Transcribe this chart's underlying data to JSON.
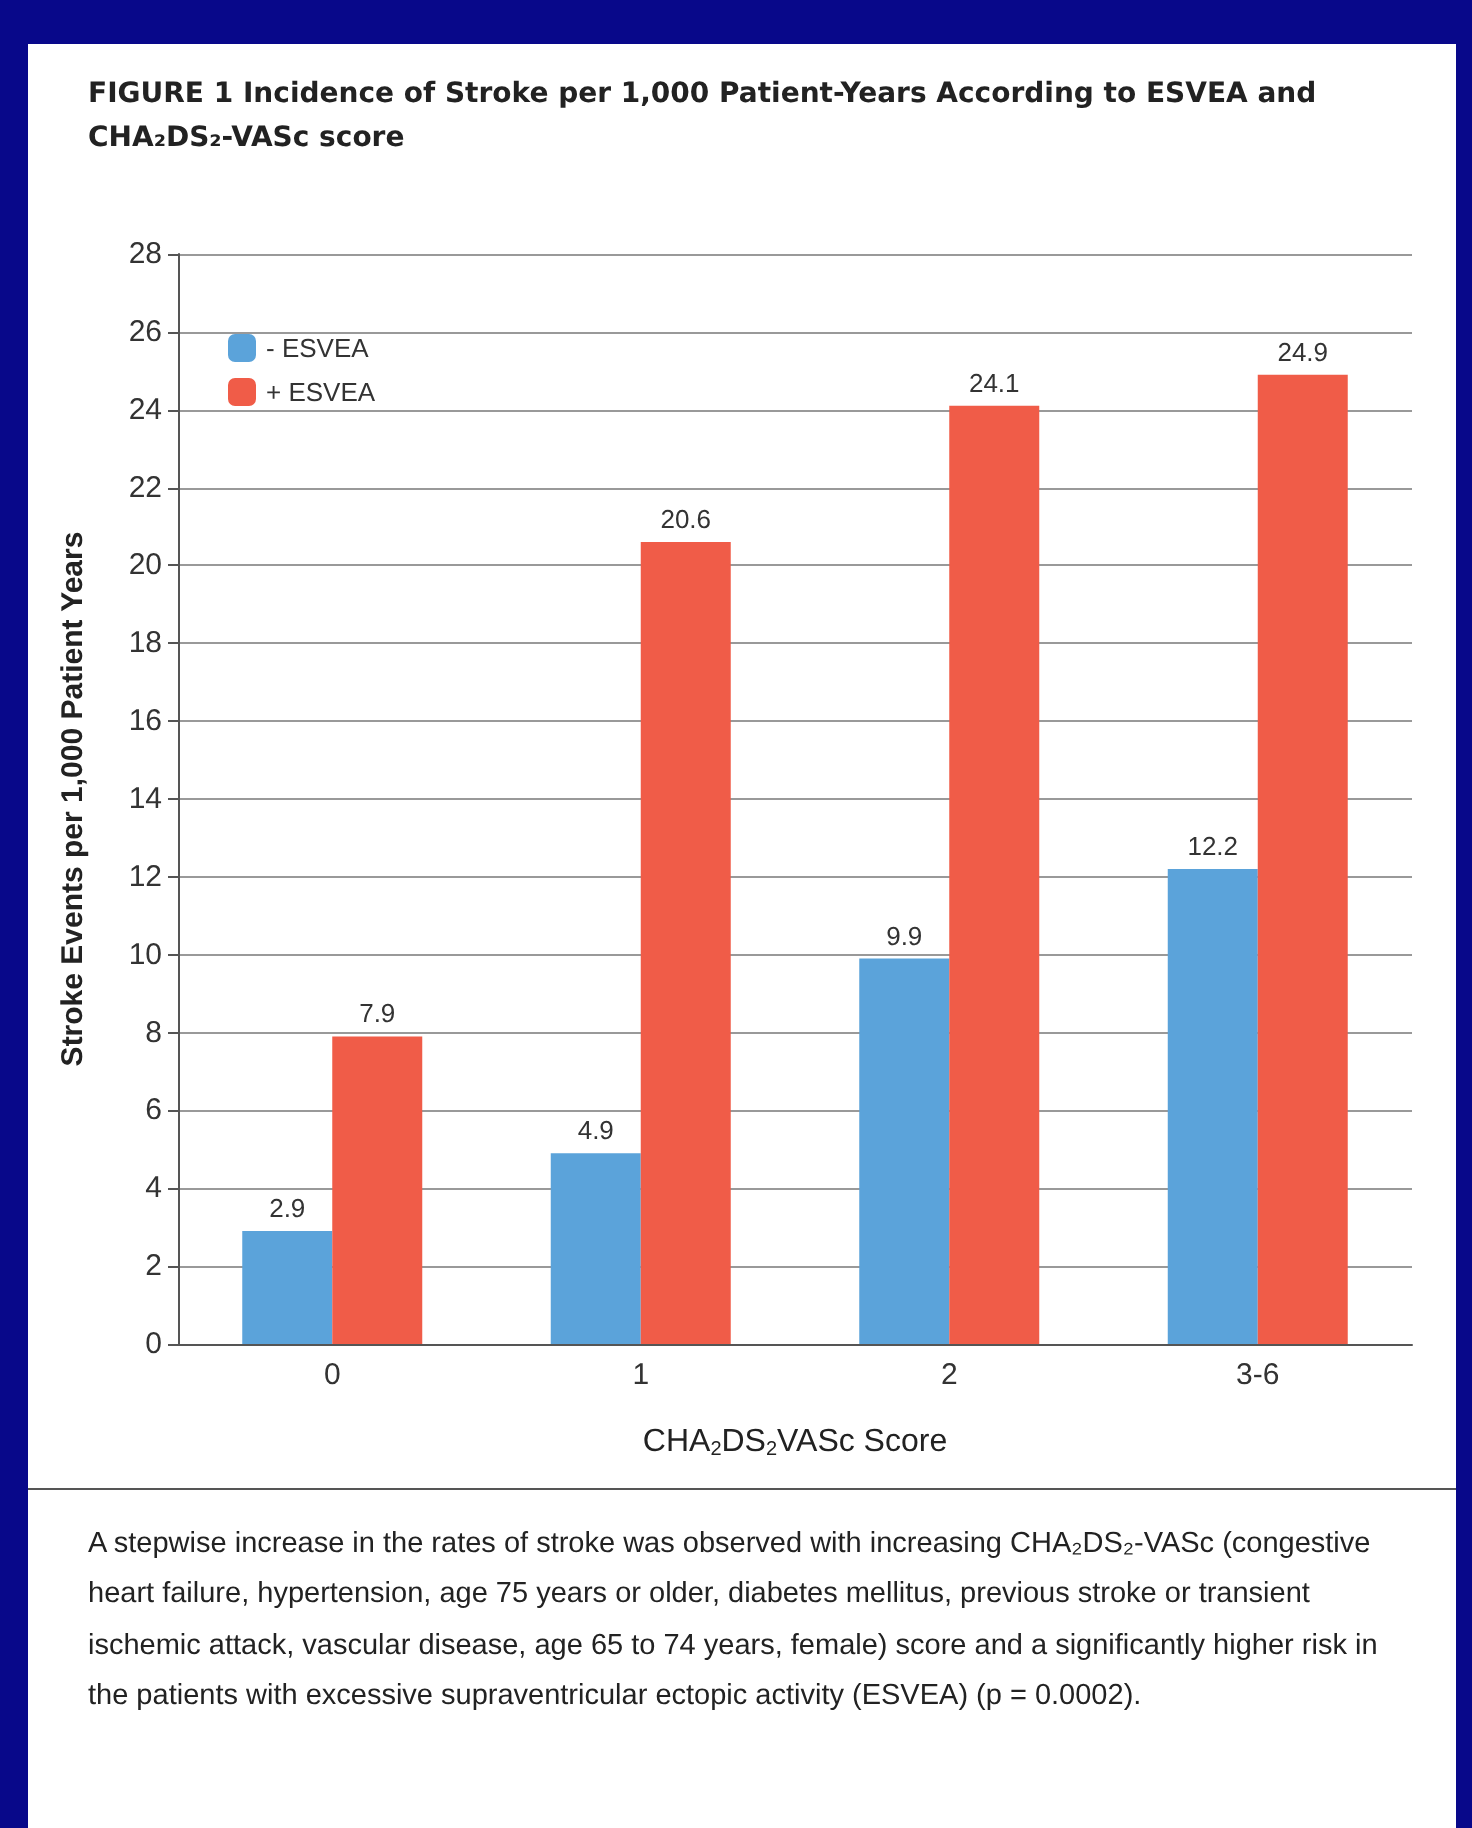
{
  "chart_data": {
    "type": "bar",
    "title": "FIGURE 1 Incidence of Stroke per 1,000 Patient-Years According to ESVEA and CHA₂DS₂-VASc score",
    "xlabel": "CHA$_{2}$DS$_{2}$VASc Score",
    "ylabel": "Stroke Events per 1,000 Patient Years",
    "categories": [
      "0",
      "1",
      "2",
      "3-6"
    ],
    "series": [
      {
        "name": "- ESVEA",
        "color": "#5ba3da",
        "values": [
          2.9,
          4.9,
          9.9,
          12.2
        ]
      },
      {
        "name": "+ ESVEA",
        "color": "#f05c48",
        "values": [
          7.9,
          20.6,
          24.1,
          24.9
        ]
      }
    ],
    "ylim": [
      0,
      28
    ],
    "yticks": [
      0,
      2,
      4,
      6,
      8,
      10,
      12,
      14,
      16,
      18,
      20,
      22,
      24,
      26,
      28
    ],
    "grid": "y",
    "legend": "top left",
    "data_labels": true,
    "annotations": [
      "A stepwise increase in the rates of stroke was observed with increasing CHA₂DS₂-VASc (congestive heart failure, hypertension, age 75 years or older, diabetes mellitus, previous stroke or transient ischemic attack, vascular disease, age 65 to 74 years, female) score and a significantly higher risk in the patients with excessive supraventricular ectopic activity (ESVEA) (p = 0.0002)."
    ]
  }
}
